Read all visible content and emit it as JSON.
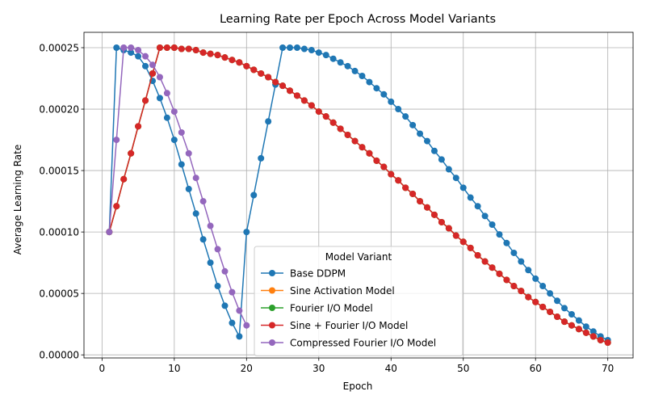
{
  "chart_data": {
    "type": "line",
    "title": "Learning Rate per Epoch Across Model Variants",
    "xlabel": "Epoch",
    "ylabel": "Average Learning Rate",
    "xlim": [
      -2.5,
      73.5
    ],
    "ylim": [
      -2.5e-06,
      0.0002625
    ],
    "xticks": [
      0,
      10,
      20,
      30,
      40,
      50,
      60,
      70
    ],
    "yticks": [
      0.0,
      5e-05,
      0.0001,
      0.00015,
      0.0002,
      0.00025
    ],
    "ytick_labels": [
      "0.00000",
      "0.00005",
      "0.00010",
      "0.00015",
      "0.00020",
      "0.00025"
    ],
    "xtick_labels": [
      "0",
      "10",
      "20",
      "30",
      "40",
      "50",
      "60",
      "70"
    ],
    "grid": true,
    "legend": {
      "title": "Model Variant",
      "placement": "lower center"
    },
    "series": [
      {
        "name": "Base DDPM",
        "color": "#1f77b4",
        "x": [
          1,
          2,
          3,
          4,
          5,
          6,
          7,
          8,
          9,
          10,
          11,
          12,
          13,
          14,
          15,
          16,
          17,
          18,
          19,
          20,
          21,
          22,
          23,
          24,
          25,
          26,
          27,
          28,
          29,
          30,
          31,
          32,
          33,
          34,
          35,
          36,
          37,
          38,
          39,
          40,
          41,
          42,
          43,
          44,
          45,
          46,
          47,
          48,
          49,
          50,
          51,
          52,
          53,
          54,
          55,
          56,
          57,
          58,
          59,
          60,
          61,
          62,
          63,
          64,
          65,
          66,
          67,
          68,
          69,
          70
        ],
        "y": [
          0.0001,
          0.00025,
          0.000248,
          0.000246,
          0.000243,
          0.000235,
          0.000223,
          0.000209,
          0.000193,
          0.000175,
          0.000155,
          0.000135,
          0.000115,
          9.4e-05,
          7.5e-05,
          5.6e-05,
          4e-05,
          2.6e-05,
          1.5e-05,
          0.0001,
          0.00013,
          0.00016,
          0.00019,
          0.00022,
          0.00025,
          0.00025,
          0.00025,
          0.000249,
          0.000248,
          0.000246,
          0.000244,
          0.000241,
          0.000238,
          0.000235,
          0.000231,
          0.000227,
          0.000222,
          0.000217,
          0.000212,
          0.000206,
          0.0002,
          0.000194,
          0.000187,
          0.00018,
          0.000174,
          0.000166,
          0.000159,
          0.000151,
          0.000144,
          0.000136,
          0.000128,
          0.000121,
          0.000113,
          0.000106,
          9.8e-05,
          9.1e-05,
          8.3e-05,
          7.6e-05,
          6.9e-05,
          6.2e-05,
          5.6e-05,
          5e-05,
          4.4e-05,
          3.8e-05,
          3.3e-05,
          2.8e-05,
          2.3e-05,
          1.9e-05,
          1.5e-05,
          1.2e-05
        ]
      },
      {
        "name": "Sine Activation Model",
        "color": "#ff7f0e",
        "x": [
          1,
          2,
          3,
          4,
          5,
          6,
          7,
          8,
          9,
          10,
          11,
          12,
          13,
          14,
          15,
          16,
          17,
          18,
          19,
          20,
          21,
          22,
          23,
          24,
          25,
          26,
          27,
          28,
          29,
          30,
          31,
          32,
          33,
          34,
          35,
          36,
          37,
          38,
          39,
          40,
          41,
          42,
          43,
          44,
          45,
          46,
          47,
          48,
          49,
          50,
          51,
          52,
          53,
          54,
          55,
          56,
          57,
          58,
          59,
          60,
          61,
          62,
          63,
          64,
          65,
          66,
          67,
          68,
          69,
          70
        ],
        "y": [
          0.0001,
          0.000121,
          0.000143,
          0.000164,
          0.000186,
          0.000207,
          0.000229,
          0.00025,
          0.00025,
          0.00025,
          0.000249,
          0.000249,
          0.000248,
          0.000246,
          0.000245,
          0.000244,
          0.000242,
          0.00024,
          0.000238,
          0.000235,
          0.000232,
          0.000229,
          0.000226,
          0.000222,
          0.000219,
          0.000215,
          0.000211,
          0.000207,
          0.000203,
          0.000198,
          0.000194,
          0.000189,
          0.000184,
          0.000179,
          0.000174,
          0.000169,
          0.000164,
          0.000158,
          0.000153,
          0.000147,
          0.000142,
          0.000136,
          0.000131,
          0.000125,
          0.00012,
          0.000114,
          0.000108,
          0.000103,
          9.7e-05,
          9.2e-05,
          8.7e-05,
          8.1e-05,
          7.6e-05,
          7.1e-05,
          6.6e-05,
          6.1e-05,
          5.6e-05,
          5.2e-05,
          4.7e-05,
          4.3e-05,
          3.9e-05,
          3.5e-05,
          3.1e-05,
          2.7e-05,
          2.4e-05,
          2.1e-05,
          1.8e-05,
          1.5e-05,
          1.2e-05,
          1e-05
        ]
      },
      {
        "name": "Fourier I/O Model",
        "color": "#2ca02c",
        "x": [
          1,
          2,
          3,
          4,
          5,
          6,
          7,
          8,
          9,
          10,
          11,
          12,
          13,
          14,
          15,
          16,
          17,
          18,
          19,
          20,
          21,
          22,
          23,
          24,
          25,
          26,
          27,
          28,
          29,
          30,
          31,
          32,
          33,
          34,
          35,
          36,
          37,
          38,
          39,
          40,
          41,
          42,
          43,
          44,
          45,
          46,
          47,
          48,
          49,
          50,
          51,
          52,
          53,
          54,
          55,
          56,
          57,
          58,
          59,
          60,
          61,
          62,
          63,
          64,
          65,
          66,
          67,
          68,
          69,
          70
        ],
        "y": [
          0.0001,
          0.000121,
          0.000143,
          0.000164,
          0.000186,
          0.000207,
          0.000229,
          0.00025,
          0.00025,
          0.00025,
          0.000249,
          0.000249,
          0.000248,
          0.000246,
          0.000245,
          0.000244,
          0.000242,
          0.00024,
          0.000238,
          0.000235,
          0.000232,
          0.000229,
          0.000226,
          0.000222,
          0.000219,
          0.000215,
          0.000211,
          0.000207,
          0.000203,
          0.000198,
          0.000194,
          0.000189,
          0.000184,
          0.000179,
          0.000174,
          0.000169,
          0.000164,
          0.000158,
          0.000153,
          0.000147,
          0.000142,
          0.000136,
          0.000131,
          0.000125,
          0.00012,
          0.000114,
          0.000108,
          0.000103,
          9.7e-05,
          9.2e-05,
          8.7e-05,
          8.1e-05,
          7.6e-05,
          7.1e-05,
          6.6e-05,
          6.1e-05,
          5.6e-05,
          5.2e-05,
          4.7e-05,
          4.3e-05,
          3.9e-05,
          3.5e-05,
          3.1e-05,
          2.7e-05,
          2.4e-05,
          2.1e-05,
          1.8e-05,
          1.5e-05,
          1.2e-05,
          1e-05
        ]
      },
      {
        "name": "Sine + Fourier I/O Model",
        "color": "#d62728",
        "x": [
          1,
          2,
          3,
          4,
          5,
          6,
          7,
          8,
          9,
          10,
          11,
          12,
          13,
          14,
          15,
          16,
          17,
          18,
          19,
          20,
          21,
          22,
          23,
          24,
          25,
          26,
          27,
          28,
          29,
          30,
          31,
          32,
          33,
          34,
          35,
          36,
          37,
          38,
          39,
          40,
          41,
          42,
          43,
          44,
          45,
          46,
          47,
          48,
          49,
          50,
          51,
          52,
          53,
          54,
          55,
          56,
          57,
          58,
          59,
          60,
          61,
          62,
          63,
          64,
          65,
          66,
          67,
          68,
          69,
          70
        ],
        "y": [
          0.0001,
          0.000121,
          0.000143,
          0.000164,
          0.000186,
          0.000207,
          0.000229,
          0.00025,
          0.00025,
          0.00025,
          0.000249,
          0.000249,
          0.000248,
          0.000246,
          0.000245,
          0.000244,
          0.000242,
          0.00024,
          0.000238,
          0.000235,
          0.000232,
          0.000229,
          0.000226,
          0.000222,
          0.000219,
          0.000215,
          0.000211,
          0.000207,
          0.000203,
          0.000198,
          0.000194,
          0.000189,
          0.000184,
          0.000179,
          0.000174,
          0.000169,
          0.000164,
          0.000158,
          0.000153,
          0.000147,
          0.000142,
          0.000136,
          0.000131,
          0.000125,
          0.00012,
          0.000114,
          0.000108,
          0.000103,
          9.7e-05,
          9.2e-05,
          8.7e-05,
          8.1e-05,
          7.6e-05,
          7.1e-05,
          6.6e-05,
          6.1e-05,
          5.6e-05,
          5.2e-05,
          4.7e-05,
          4.3e-05,
          3.9e-05,
          3.5e-05,
          3.1e-05,
          2.7e-05,
          2.4e-05,
          2.1e-05,
          1.8e-05,
          1.5e-05,
          1.2e-05,
          1e-05
        ]
      },
      {
        "name": "Compressed Fourier I/O Model",
        "color": "#9467bd",
        "x": [
          1,
          2,
          3,
          4,
          5,
          6,
          7,
          8,
          9,
          10,
          11,
          12,
          13,
          14,
          15,
          16,
          17,
          18,
          19,
          20
        ],
        "y": [
          0.0001,
          0.000175,
          0.00025,
          0.00025,
          0.000248,
          0.000243,
          0.000236,
          0.000226,
          0.000213,
          0.000198,
          0.000181,
          0.000164,
          0.000144,
          0.000125,
          0.000105,
          8.6e-05,
          6.8e-05,
          5.1e-05,
          3.6e-05,
          2.4e-05
        ]
      }
    ]
  }
}
